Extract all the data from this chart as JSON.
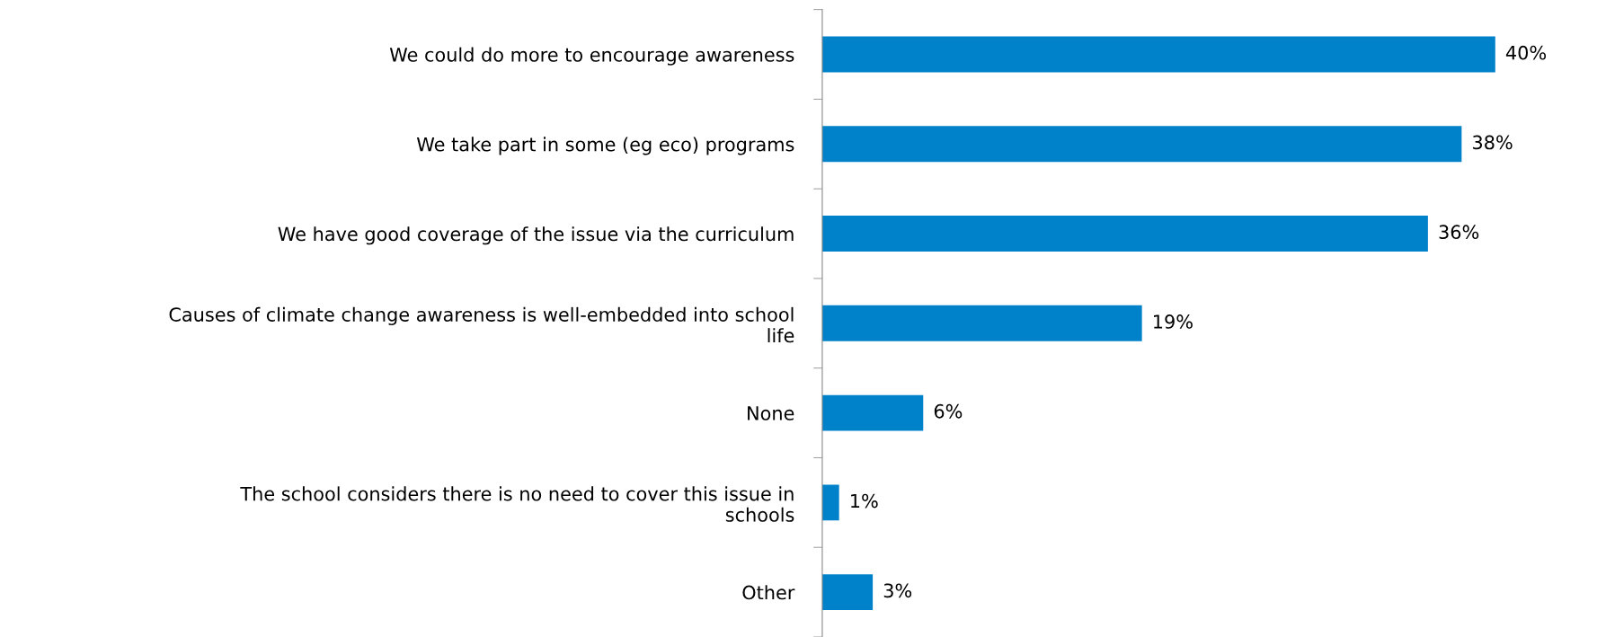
{
  "chart_data": {
    "type": "bar",
    "orientation": "horizontal",
    "categories": [
      "We could do more to encourage awareness",
      "We take part in some (eg eco) programs",
      "We have good coverage of the issue via the curriculum",
      "Causes of climate change awareness is well-embedded into school life",
      "None",
      "The school considers there is no need to cover this issue in schools",
      "Other"
    ],
    "values": [
      40,
      38,
      36,
      19,
      6,
      1,
      3
    ],
    "value_labels": [
      "40%",
      "38%",
      "36%",
      "19%",
      "6%",
      "1%",
      "3%"
    ],
    "color": "#0082ca",
    "grid": false,
    "legend": false,
    "tick_labels": "y"
  }
}
